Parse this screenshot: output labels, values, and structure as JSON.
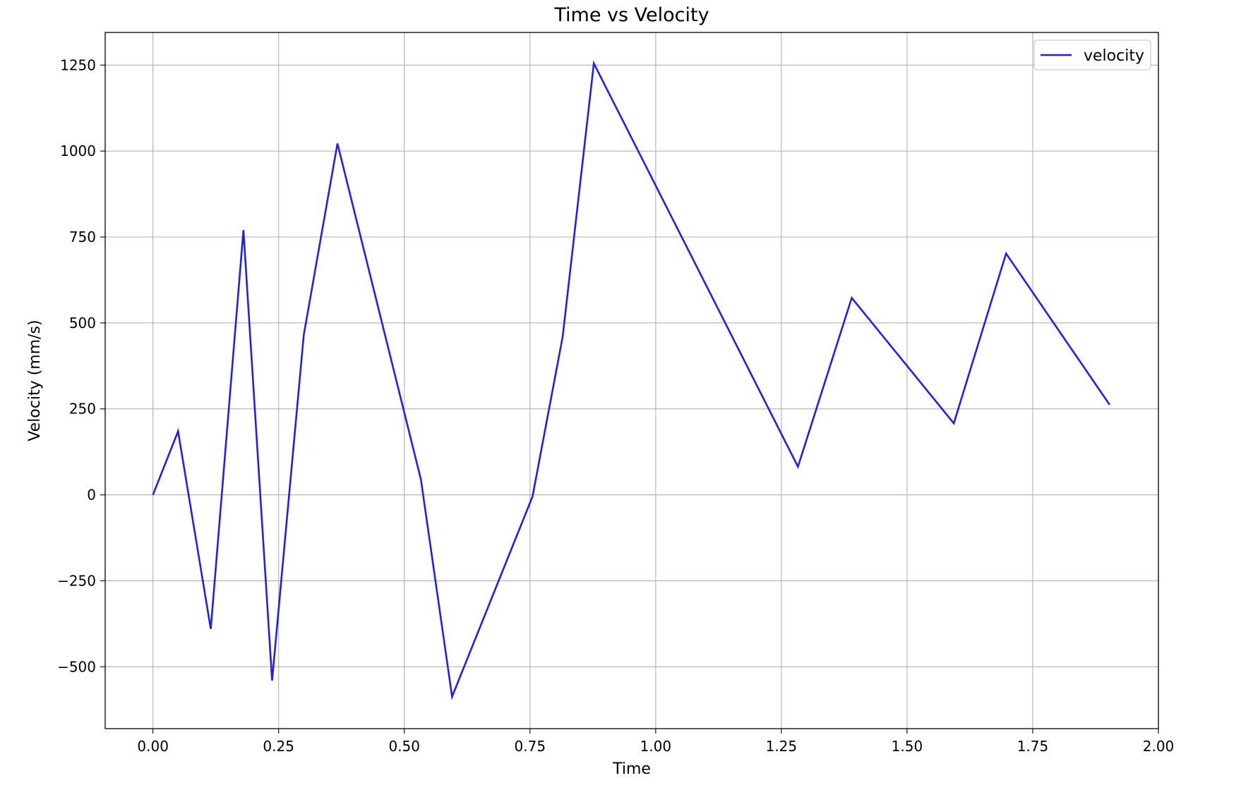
{
  "chart_data": {
    "type": "line",
    "title": "Time vs Velocity",
    "xlabel": "Time",
    "ylabel": "Velocity (mm/s)",
    "xlim": [
      -0.095,
      2.0
    ],
    "ylim": [
      -680,
      1345
    ],
    "xticks": [
      0.0,
      0.25,
      0.5,
      0.75,
      1.0,
      1.25,
      1.5,
      1.75,
      2.0
    ],
    "xtick_labels": [
      "0.00",
      "0.25",
      "0.50",
      "0.75",
      "1.00",
      "1.25",
      "1.50",
      "1.75",
      "2.00"
    ],
    "yticks": [
      -500,
      -250,
      0,
      250,
      500,
      750,
      1000,
      1250
    ],
    "ytick_labels": [
      "−500",
      "−250",
      "0",
      "250",
      "500",
      "750",
      "1000",
      "1250"
    ],
    "grid": true,
    "legend_position": "top-right",
    "series": [
      {
        "name": "velocity",
        "color": "#1f1ff0",
        "x": [
          0.0,
          0.05,
          0.115,
          0.18,
          0.237,
          0.3,
          0.367,
          0.533,
          0.595,
          0.755,
          0.815,
          0.877,
          1.283,
          1.39,
          1.593,
          1.697,
          1.903
        ],
        "y": [
          0,
          185,
          -390,
          770,
          -540,
          465,
          1022,
          45,
          -587,
          -5,
          460,
          1255,
          82,
          573,
          208,
          702,
          262
        ]
      }
    ]
  }
}
